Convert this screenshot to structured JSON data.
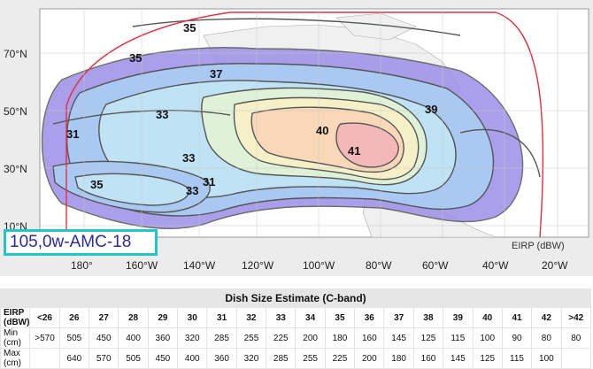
{
  "map": {
    "satellite_label": "105,0w-AMC-18",
    "legend_unit": "EIRP (dBW)",
    "latitude_labels": [
      "70°N",
      "50°N",
      "30°N",
      "10°N"
    ],
    "longitude_labels": [
      "180°",
      "160°W",
      "140°W",
      "120°W",
      "100°W",
      "80°W",
      "60°W",
      "40°W",
      "20°W"
    ],
    "contour_labels": [
      {
        "text": "35",
        "id": "35-top"
      },
      {
        "text": "35",
        "id": "35-alaska"
      },
      {
        "text": "37",
        "id": "37"
      },
      {
        "text": "33",
        "id": "33-upper"
      },
      {
        "text": "31",
        "id": "31-left"
      },
      {
        "text": "40",
        "id": "40"
      },
      {
        "text": "39",
        "id": "39"
      },
      {
        "text": "41",
        "id": "41"
      },
      {
        "text": "33",
        "id": "33-mid"
      },
      {
        "text": "35",
        "id": "35-pacific"
      },
      {
        "text": "31",
        "id": "31-pacific"
      },
      {
        "text": "33",
        "id": "33-low"
      }
    ],
    "colors": {
      "background": "#ececec",
      "land": "#f5f5f5",
      "edge_of_coverage": "#e03040",
      "contour_line": "#555555",
      "eirp_31": "#9b8fe8",
      "eirp_33": "#a9c8f2",
      "eirp_35": "#bfe3f5",
      "eirp_37": "#dff2d8",
      "eirp_39": "#f5f0c8",
      "eirp_40": "#f8d8b8",
      "eirp_41": "#f4b8b8"
    }
  },
  "table": {
    "title": "Dish Size Estimate (C-band)",
    "eirp_label": "EIRP (dBW)",
    "min_label": "Min (cm)",
    "max_label": "Max (cm)",
    "eirp": [
      "<26",
      "26",
      "27",
      "28",
      "29",
      "30",
      "31",
      "32",
      "33",
      "34",
      "35",
      "36",
      "37",
      "38",
      "39",
      "40",
      "41",
      "42",
      ">42"
    ],
    "min": [
      ">570",
      "505",
      "450",
      "400",
      "360",
      "320",
      "285",
      "255",
      "225",
      "200",
      "180",
      "160",
      "145",
      "125",
      "115",
      "100",
      "90",
      "80",
      "80"
    ],
    "max": [
      "",
      "640",
      "570",
      "505",
      "450",
      "400",
      "360",
      "320",
      "285",
      "255",
      "225",
      "200",
      "180",
      "160",
      "145",
      "125",
      "115",
      "100",
      ""
    ]
  }
}
